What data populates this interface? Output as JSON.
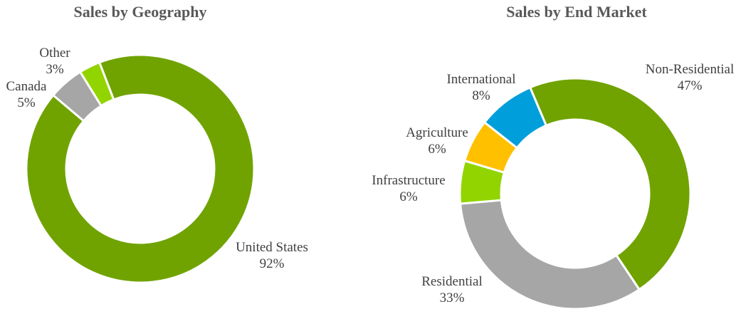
{
  "chart_data": [
    {
      "type": "pie",
      "subtype": "donut",
      "title": "Sales by Geography",
      "categories": [
        "United States",
        "Canada",
        "Other"
      ],
      "values": [
        92,
        5,
        3
      ],
      "unit": "%",
      "colors": [
        "#70a300",
        "#a6a6a6",
        "#92d400"
      ],
      "legend": "none (data labels outside)"
    },
    {
      "type": "pie",
      "subtype": "donut",
      "title": "Sales by End Market",
      "categories": [
        "Non-Residential",
        "Residential",
        "Infrastructure",
        "Agriculture",
        "International"
      ],
      "values": [
        47,
        33,
        6,
        6,
        8
      ],
      "unit": "%",
      "colors": [
        "#70a300",
        "#a6a6a6",
        "#92d400",
        "#ffc000",
        "#009fdb"
      ],
      "legend": "none (data labels outside)"
    }
  ],
  "left": {
    "title": "Sales by Geography",
    "labels": [
      {
        "name": "United States",
        "pct": "92%"
      },
      {
        "name": "Canada",
        "pct": "5%"
      },
      {
        "name": "Other",
        "pct": "3%"
      }
    ]
  },
  "right": {
    "title": "Sales by End Market",
    "labels": [
      {
        "name": "Non-Residential",
        "pct": "47%"
      },
      {
        "name": "Residential",
        "pct": "33%"
      },
      {
        "name": "Infrastructure",
        "pct": "6%"
      },
      {
        "name": "Agriculture",
        "pct": "6%"
      },
      {
        "name": "International",
        "pct": "8%"
      }
    ]
  }
}
